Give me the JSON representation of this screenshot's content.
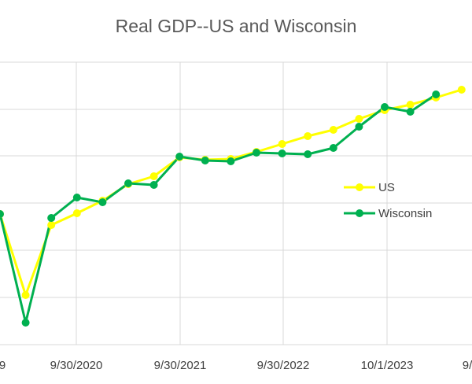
{
  "chart_data": {
    "type": "line",
    "title": "Real GDP--US and Wisconsin",
    "xlabel": "",
    "ylabel": "",
    "x_tick_labels": [
      "9",
      "9/30/2020",
      "9/30/2021",
      "9/30/2022",
      "10/1/2023",
      "9/"
    ],
    "grid": true,
    "legend": "right",
    "series": [
      {
        "name": "US",
        "color": "#ffff00",
        "values": [
          272,
          375,
          286,
          271,
          255,
          234,
          224,
          200,
          203,
          202,
          193,
          183,
          173,
          165,
          151,
          140,
          133,
          124,
          114
        ]
      },
      {
        "name": "Wisconsin",
        "color": "#00b050",
        "values": [
          272,
          410,
          277,
          251,
          257,
          233,
          235,
          199,
          204,
          205,
          194,
          195,
          196,
          188,
          161,
          136,
          142,
          120
        ]
      }
    ]
  }
}
